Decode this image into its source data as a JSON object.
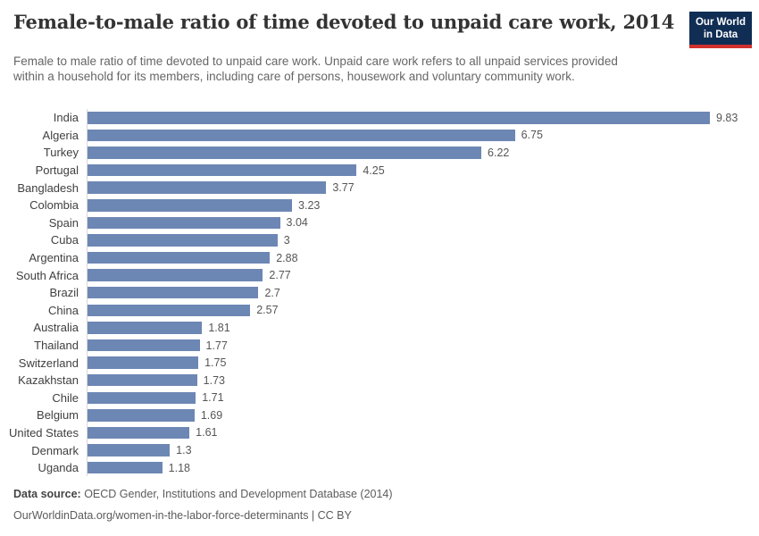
{
  "header": {
    "title": "Female-to-male ratio of time devoted to unpaid care work, 2014",
    "subtitle": "Female to male ratio of time devoted to unpaid care work. Unpaid care work refers to all unpaid services provided within a household for its members, including care of persons, housework and voluntary community work.",
    "logo": {
      "line1": "Our World",
      "line2": "in Data"
    }
  },
  "chart_data": {
    "type": "bar",
    "orientation": "horizontal",
    "title": "Female-to-male ratio of time devoted to unpaid care work, 2014",
    "categories": [
      "India",
      "Algeria",
      "Turkey",
      "Portugal",
      "Bangladesh",
      "Colombia",
      "Spain",
      "Cuba",
      "Argentina",
      "South Africa",
      "Brazil",
      "China",
      "Australia",
      "Thailand",
      "Switzerland",
      "Kazakhstan",
      "Chile",
      "Belgium",
      "United States",
      "Denmark",
      "Uganda"
    ],
    "values": [
      9.83,
      6.75,
      6.22,
      4.25,
      3.77,
      3.23,
      3.04,
      3,
      2.88,
      2.77,
      2.7,
      2.57,
      1.81,
      1.77,
      1.75,
      1.73,
      1.71,
      1.69,
      1.61,
      1.3,
      1.18
    ],
    "value_labels": [
      "9.83",
      "6.75",
      "6.22",
      "4.25",
      "3.77",
      "3.23",
      "3.04",
      "3",
      "2.88",
      "2.77",
      "2.7",
      "2.57",
      "1.81",
      "1.77",
      "1.75",
      "1.73",
      "1.71",
      "1.69",
      "1.61",
      "1.3",
      "1.18"
    ],
    "xlim": [
      0,
      9.83
    ],
    "grid": false,
    "legend": false,
    "bar_color": "#6d87b4",
    "axis_line_color": "#d9d9d9"
  },
  "footer": {
    "source_label": "Data source:",
    "source_text": " OECD Gender, Institutions and Development Database (2014)",
    "attribution": "OurWorldinData.org/women-in-the-labor-force-determinants | CC BY"
  },
  "colors": {
    "logo_background": "#102d54",
    "logo_accent": "#d0312d",
    "title_text": "#333333",
    "subtitle_text": "#666666"
  }
}
